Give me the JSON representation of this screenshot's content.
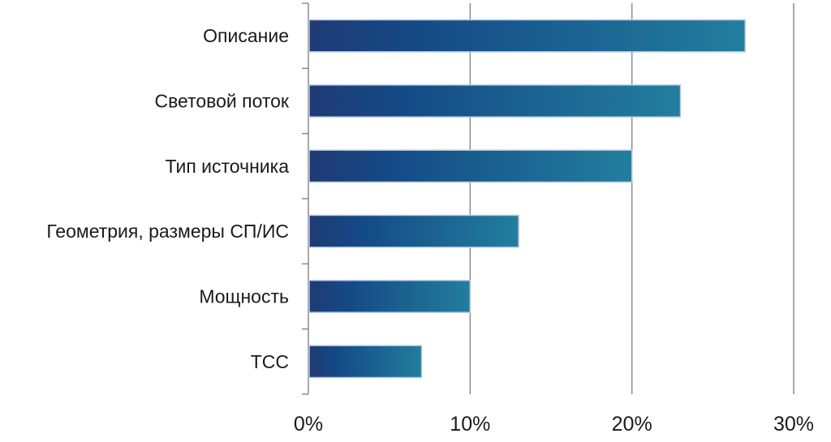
{
  "chart_data": {
    "type": "bar",
    "orientation": "horizontal",
    "title": "",
    "xlabel": "",
    "ylabel": "",
    "categories": [
      "Описание",
      "Световой поток",
      "Тип источника",
      "Геометрия, размеры СП/ИС",
      "Мощность",
      "ТСС"
    ],
    "values": [
      27,
      23,
      20,
      13,
      10,
      7
    ],
    "value_unit": "%",
    "xlim": [
      0,
      30
    ],
    "ticks": [
      {
        "value": 0,
        "label": "0%"
      },
      {
        "value": 10,
        "label": "10%"
      },
      {
        "value": 20,
        "label": "20%"
      },
      {
        "value": 30,
        "label": "30%"
      }
    ],
    "grid": true,
    "legend": "none",
    "colors": {
      "bar_gradient_start": "#1f3a74",
      "bar_gradient_mid": "#144a86",
      "bar_gradient_end": "#227e9e",
      "bar_outline": "#b8c8e4",
      "grid": "#8c8c8c"
    }
  }
}
